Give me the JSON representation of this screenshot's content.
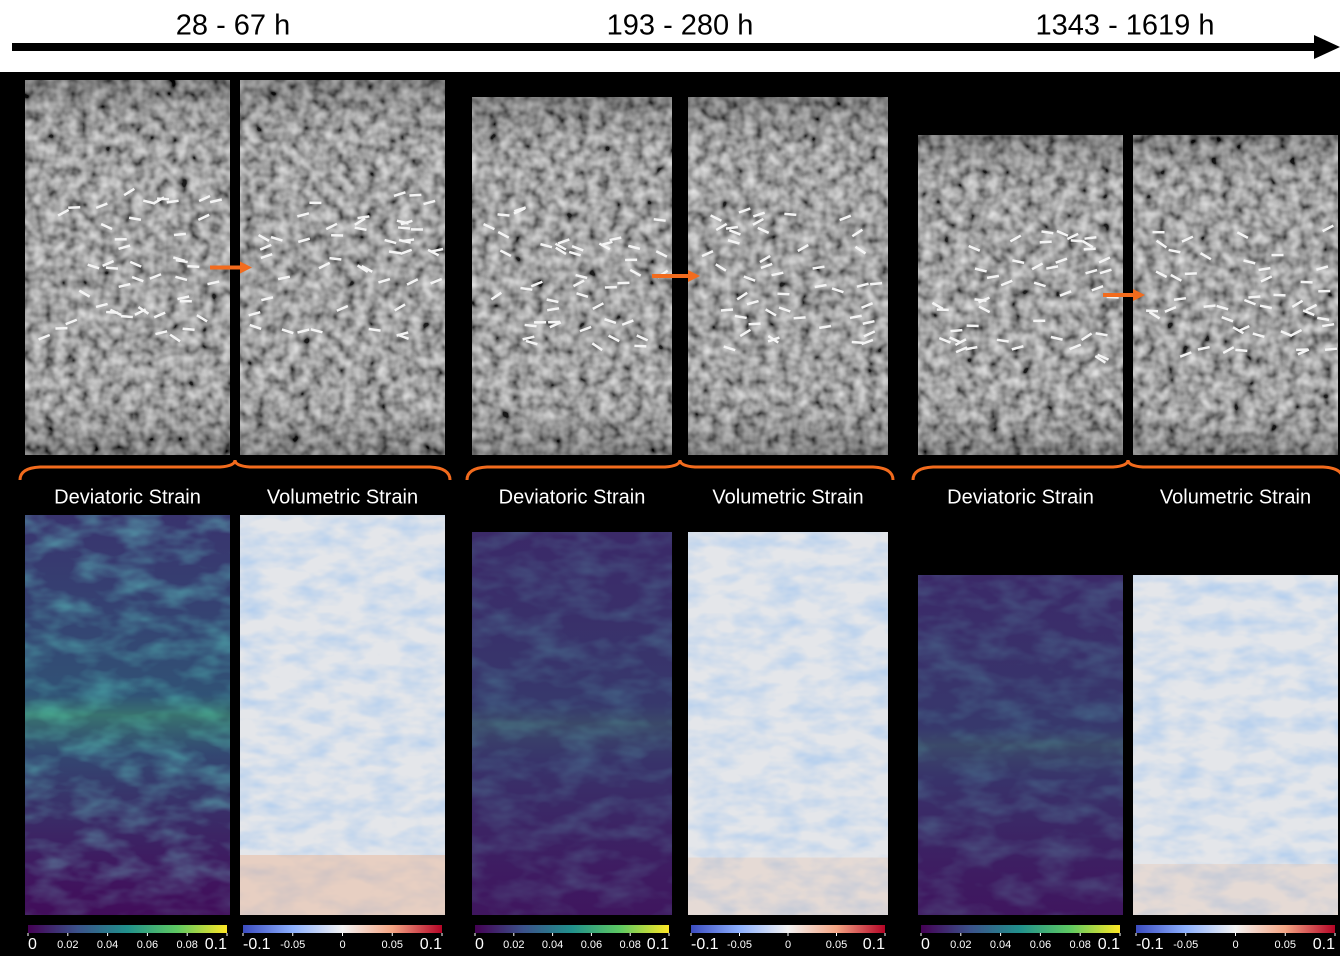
{
  "timeline": [
    "28 - 67 h",
    "193 - 280 h",
    "1343 - 1619 h"
  ],
  "groups": [
    {
      "panels": [
        {
          "label": "Deviatoric Strain",
          "colorbar_ticks": [
            0,
            0.02,
            0.04,
            0.06,
            0.08,
            0.1
          ]
        },
        {
          "label": "Volumetric Strain",
          "colorbar_ticks": [
            -0.1,
            -0.05,
            0,
            0.05,
            0.1
          ]
        }
      ]
    },
    {
      "panels": [
        {
          "label": "Deviatoric Strain",
          "colorbar_ticks": [
            0,
            0.02,
            0.04,
            0.06,
            0.08,
            0.1
          ]
        },
        {
          "label": "Volumetric Strain",
          "colorbar_ticks": [
            -0.1,
            -0.05,
            0,
            0.05,
            0.1
          ]
        }
      ]
    },
    {
      "panels": [
        {
          "label": "Deviatoric Strain",
          "colorbar_ticks": [
            0,
            0.02,
            0.04,
            0.06,
            0.08,
            0.1
          ]
        },
        {
          "label": "Volumetric Strain",
          "colorbar_ticks": [
            -0.1,
            -0.05,
            0,
            0.05,
            0.1
          ]
        }
      ]
    }
  ]
}
